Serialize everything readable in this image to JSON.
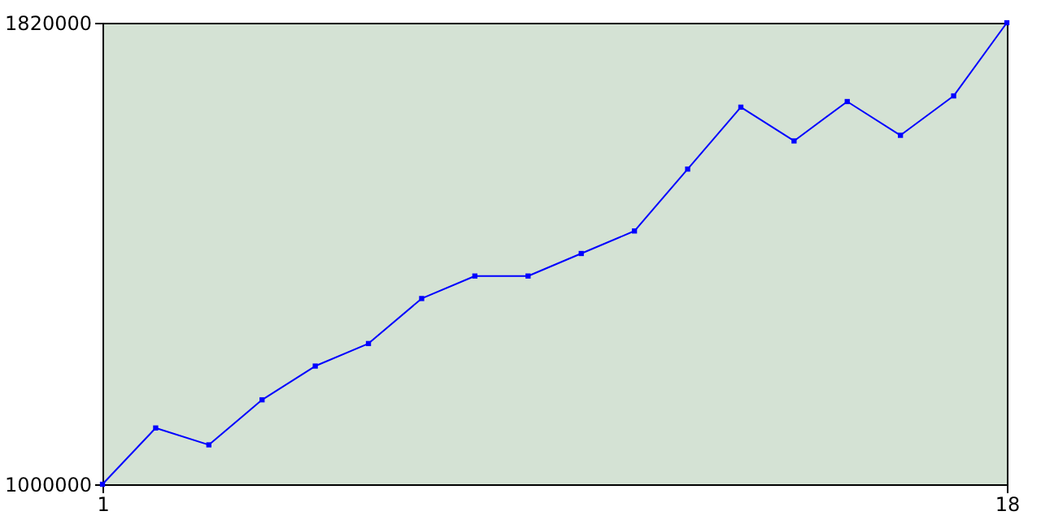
{
  "chart_data": {
    "type": "line",
    "x": [
      1,
      2,
      3,
      4,
      5,
      6,
      7,
      8,
      9,
      10,
      11,
      12,
      13,
      14,
      15,
      16,
      17,
      18
    ],
    "series": [
      {
        "color": "#0000ff",
        "values": [
          1000000,
          1100000,
          1070000,
          1150000,
          1210000,
          1250000,
          1330000,
          1370000,
          1370000,
          1410000,
          1450000,
          1560000,
          1670000,
          1610000,
          1680000,
          1620000,
          1690000,
          1820000
        ]
      }
    ],
    "xlim": [
      1,
      18
    ],
    "xticks": [
      1,
      18
    ],
    "ylim": [
      1000000,
      1820000
    ],
    "yticks": [
      1000000,
      1820000
    ],
    "marker": "square",
    "line_style": "solid"
  }
}
